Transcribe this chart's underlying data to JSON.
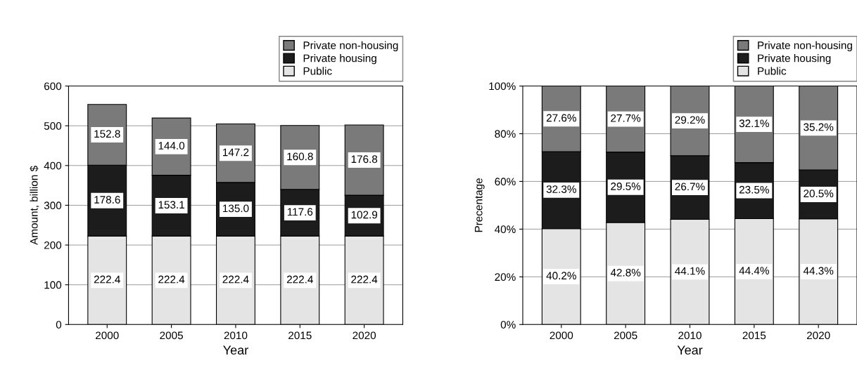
{
  "chart_data": [
    {
      "type": "bar",
      "stacked": true,
      "xlabel": "Year",
      "ylabel": "Amount, billion $",
      "categories": [
        "2000",
        "2005",
        "2010",
        "2015",
        "2020"
      ],
      "ylim": [
        0,
        600
      ],
      "yticks": [
        0,
        100,
        200,
        300,
        400,
        500,
        600
      ],
      "grid": "y",
      "legend": "top right",
      "series": [
        {
          "name": "Public",
          "color": "#e4e4e4",
          "values": [
            222.4,
            222.4,
            222.4,
            222.4,
            222.4
          ],
          "value_labels": [
            "222.4",
            "222.4",
            "222.4",
            "222.4",
            "222.4"
          ]
        },
        {
          "name": "Private housing",
          "color": "#1c1c1c",
          "values": [
            178.6,
            153.1,
            135.0,
            117.6,
            102.9
          ],
          "value_labels": [
            "178.6",
            "153.1",
            "135.0",
            "117.6",
            "102.9"
          ]
        },
        {
          "name": "Private non-housing",
          "color": "#7a7a7a",
          "values": [
            152.8,
            144.0,
            147.2,
            160.8,
            176.8
          ],
          "value_labels": [
            "152.8",
            "144.0",
            "147.2",
            "160.8",
            "176.8"
          ]
        }
      ]
    },
    {
      "type": "bar",
      "stacked": true,
      "xlabel": "Year",
      "ylabel": "Precentage",
      "categories": [
        "2000",
        "2005",
        "2010",
        "2015",
        "2020"
      ],
      "ylim": [
        0,
        100
      ],
      "yticks": [
        {
          "value": 0,
          "label": "0%"
        },
        {
          "value": 20,
          "label": "20%"
        },
        {
          "value": 40,
          "label": "40%"
        },
        {
          "value": 60,
          "label": "60%"
        },
        {
          "value": 80,
          "label": "80%"
        },
        {
          "value": 100,
          "label": "100%"
        }
      ],
      "grid": "y",
      "legend": "top right",
      "series": [
        {
          "name": "Public",
          "color": "#e4e4e4",
          "values": [
            40.2,
            42.8,
            44.1,
            44.4,
            44.3
          ],
          "value_labels": [
            "40.2%",
            "42.8%",
            "44.1%",
            "44.4%",
            "44.3%"
          ]
        },
        {
          "name": "Private housing",
          "color": "#1c1c1c",
          "values": [
            32.3,
            29.5,
            26.7,
            23.5,
            20.5
          ],
          "value_labels": [
            "32.3%",
            "29.5%",
            "26.7%",
            "23.5%",
            "20.5%"
          ]
        },
        {
          "name": "Private non-housing",
          "color": "#7a7a7a",
          "values": [
            27.6,
            27.7,
            29.2,
            32.1,
            35.2
          ],
          "value_labels": [
            "27.6%",
            "27.7%",
            "29.2%",
            "32.1%",
            "35.2%"
          ]
        }
      ]
    }
  ]
}
